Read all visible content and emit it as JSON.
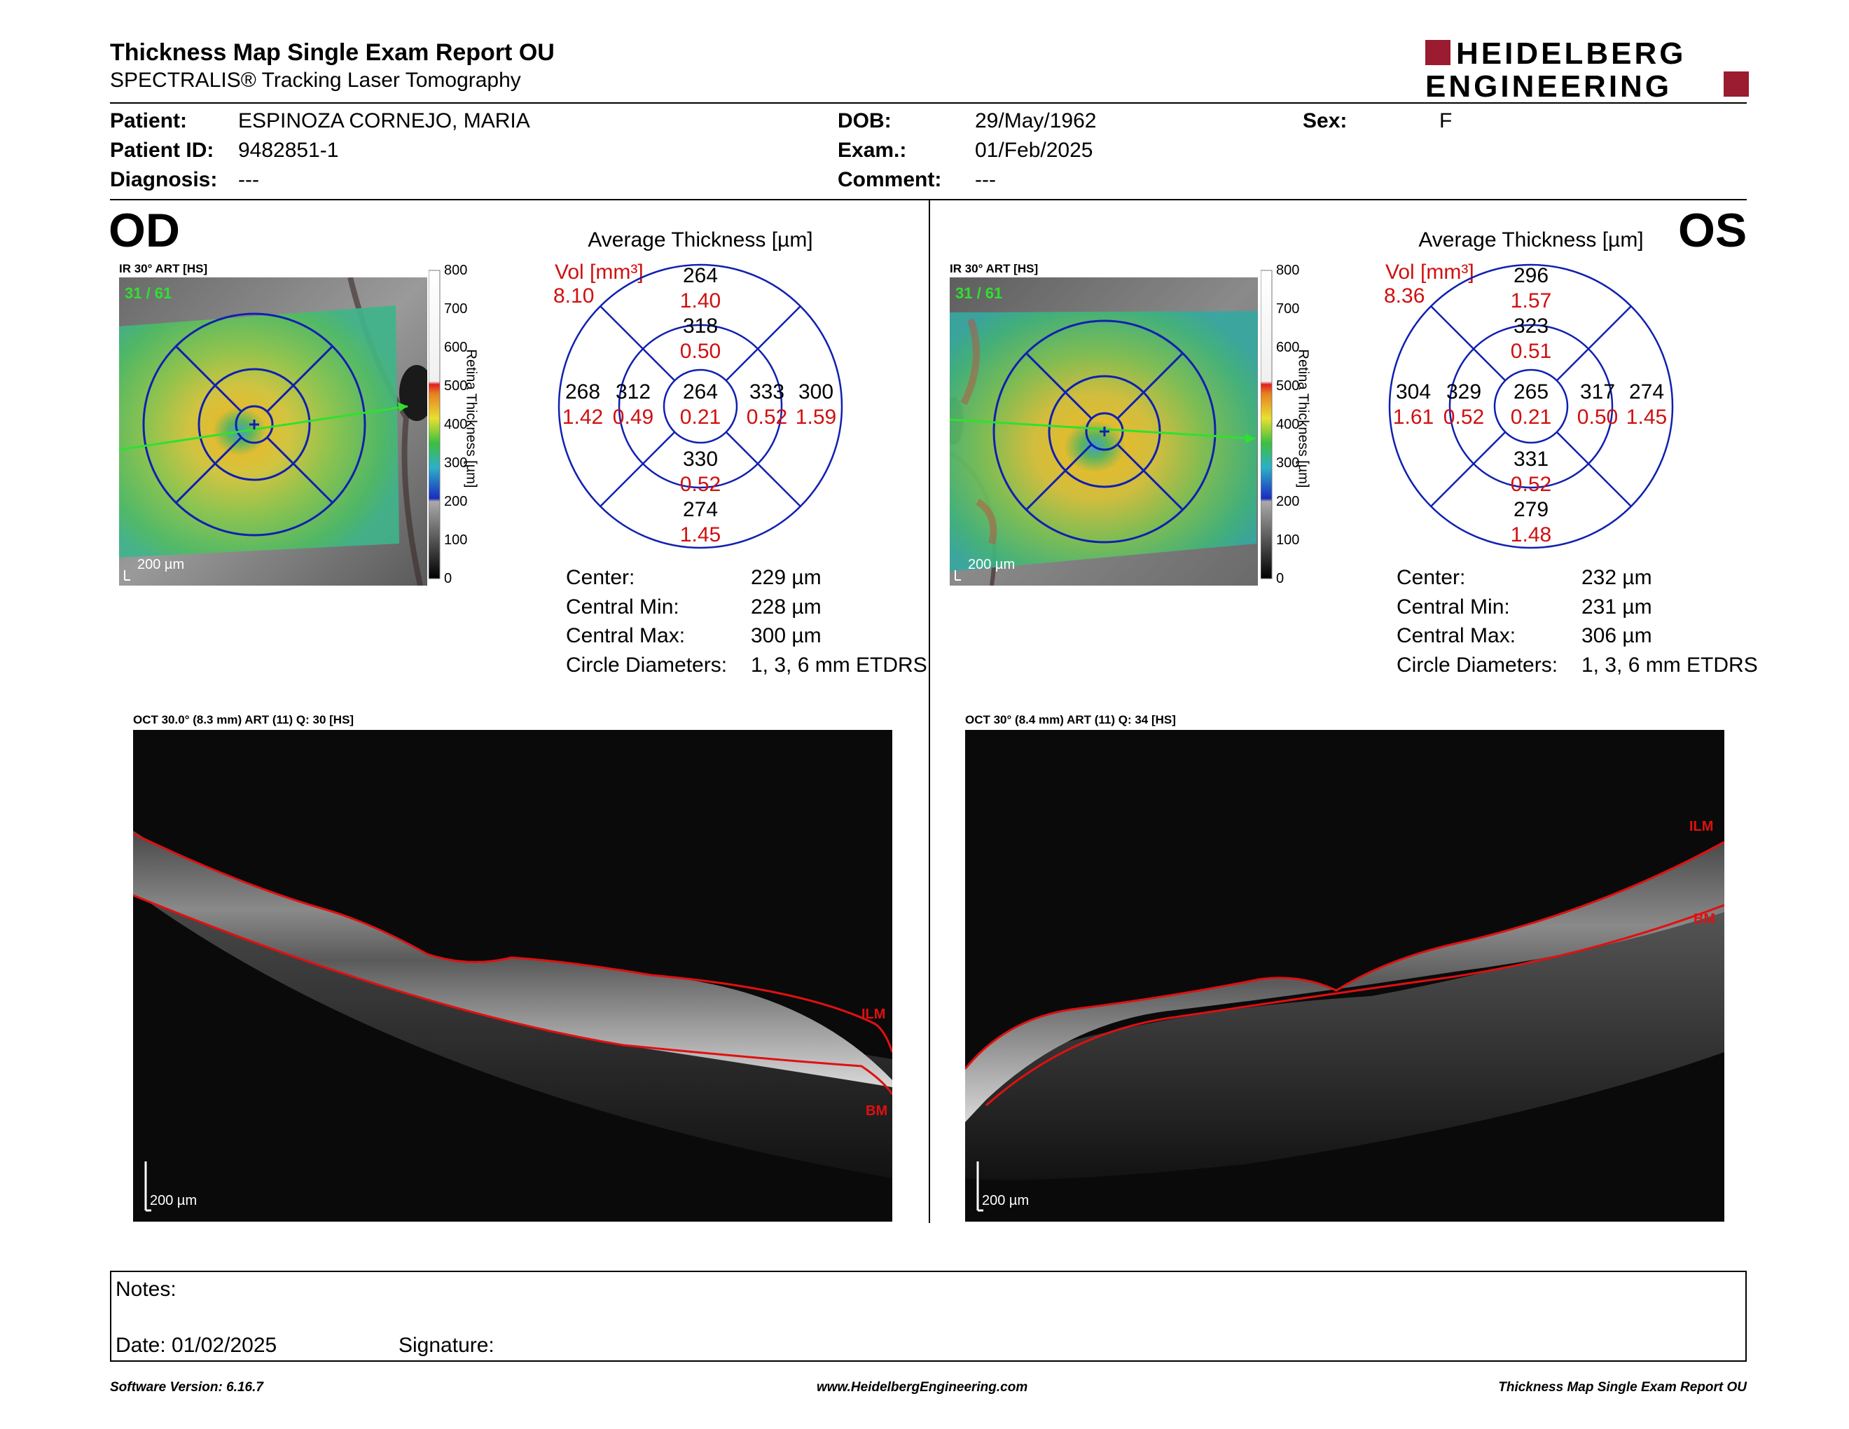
{
  "header": {
    "title": "Thickness Map Single Exam Report OU",
    "subtitle": "SPECTRALIS® Tracking Laser Tomography",
    "logo_line1": "HEIDELBERG",
    "logo_line2": "ENGINEERING",
    "brand_color": "#9b1b30"
  },
  "patient": {
    "patient_label": "Patient:",
    "patient_value": "ESPINOZA CORNEJO, MARIA",
    "id_label": "Patient ID:",
    "id_value": "9482851-1",
    "diagnosis_label": "Diagnosis:",
    "diagnosis_value": "---",
    "dob_label": "DOB:",
    "dob_value": "29/May/1962",
    "exam_label": "Exam.:",
    "exam_value": "01/Feb/2025",
    "comment_label": "Comment:",
    "comment_value": "---",
    "sex_label": "Sex:",
    "sex_value": "F"
  },
  "od": {
    "eye": "OD",
    "ir_label": "IR 30° ART [HS]",
    "ir_counter": "31 / 61",
    "scale_label": "200 µm",
    "avg_title": "Average Thickness [µm]",
    "vol_label": "Vol [mm³]",
    "vol_total": "8.10",
    "center": {
      "thick": "264",
      "vol": "0.21"
    },
    "inner": {
      "sup": {
        "thick": "318",
        "vol": "0.50"
      },
      "inf": {
        "thick": "330",
        "vol": "0.52"
      },
      "left": {
        "thick": "312",
        "vol": "0.49"
      },
      "right": {
        "thick": "333",
        "vol": "0.52"
      }
    },
    "outer": {
      "sup": {
        "thick": "264",
        "vol": "1.40"
      },
      "inf": {
        "thick": "274",
        "vol": "1.45"
      },
      "left": {
        "thick": "268",
        "vol": "1.42"
      },
      "right": {
        "thick": "300",
        "vol": "1.59"
      }
    },
    "stats": [
      {
        "label": "Center:",
        "value": "229 µm"
      },
      {
        "label": "Central Min:",
        "value": "228 µm"
      },
      {
        "label": "Central Max:",
        "value": "300 µm"
      },
      {
        "label": "Circle Diameters:",
        "value": "1, 3, 6 mm ETDRS"
      }
    ],
    "oct_label": "OCT 30.0° (8.3 mm) ART (11) Q: 30 [HS]",
    "oct_scale": "200 µm",
    "ilm": "ILM",
    "bm": "BM"
  },
  "os": {
    "eye": "OS",
    "ir_label": "IR 30° ART [HS]",
    "ir_counter": "31 / 61",
    "scale_label": "200 µm",
    "avg_title": "Average Thickness [µm]",
    "vol_label": "Vol [mm³]",
    "vol_total": "8.36",
    "center": {
      "thick": "265",
      "vol": "0.21"
    },
    "inner": {
      "sup": {
        "thick": "323",
        "vol": "0.51"
      },
      "inf": {
        "thick": "331",
        "vol": "0.52"
      },
      "left": {
        "thick": "329",
        "vol": "0.52"
      },
      "right": {
        "thick": "317",
        "vol": "0.50"
      }
    },
    "outer": {
      "sup": {
        "thick": "296",
        "vol": "1.57"
      },
      "inf": {
        "thick": "279",
        "vol": "1.48"
      },
      "left": {
        "thick": "304",
        "vol": "1.61"
      },
      "right": {
        "thick": "274",
        "vol": "1.45"
      }
    },
    "stats": [
      {
        "label": "Center:",
        "value": "232 µm"
      },
      {
        "label": "Central Min:",
        "value": "231 µm"
      },
      {
        "label": "Central Max:",
        "value": "306 µm"
      },
      {
        "label": "Circle Diameters:",
        "value": "1, 3, 6 mm ETDRS"
      }
    ],
    "oct_label": "OCT 30° (8.4 mm) ART (11) Q: 34 [HS]",
    "oct_scale": "200 µm",
    "ilm": "ILM",
    "bm": "BM"
  },
  "colorbar": {
    "ticks": [
      "800",
      "700",
      "600",
      "500",
      "400",
      "300",
      "200",
      "100",
      "0"
    ],
    "title": "Retina Thickness [µm]"
  },
  "notes": {
    "notes_label": "Notes:",
    "date_label": "Date: 01/02/2025",
    "signature_label": "Signature:"
  },
  "footer": {
    "left": "Software Version: 6.16.7",
    "center": "www.HeidelbergEngineering.com",
    "right": "Thickness Map Single Exam Report OU"
  },
  "colors": {
    "red_value": "#d01010",
    "grid_blue": "#1020b0",
    "scan_green": "#30e030"
  }
}
